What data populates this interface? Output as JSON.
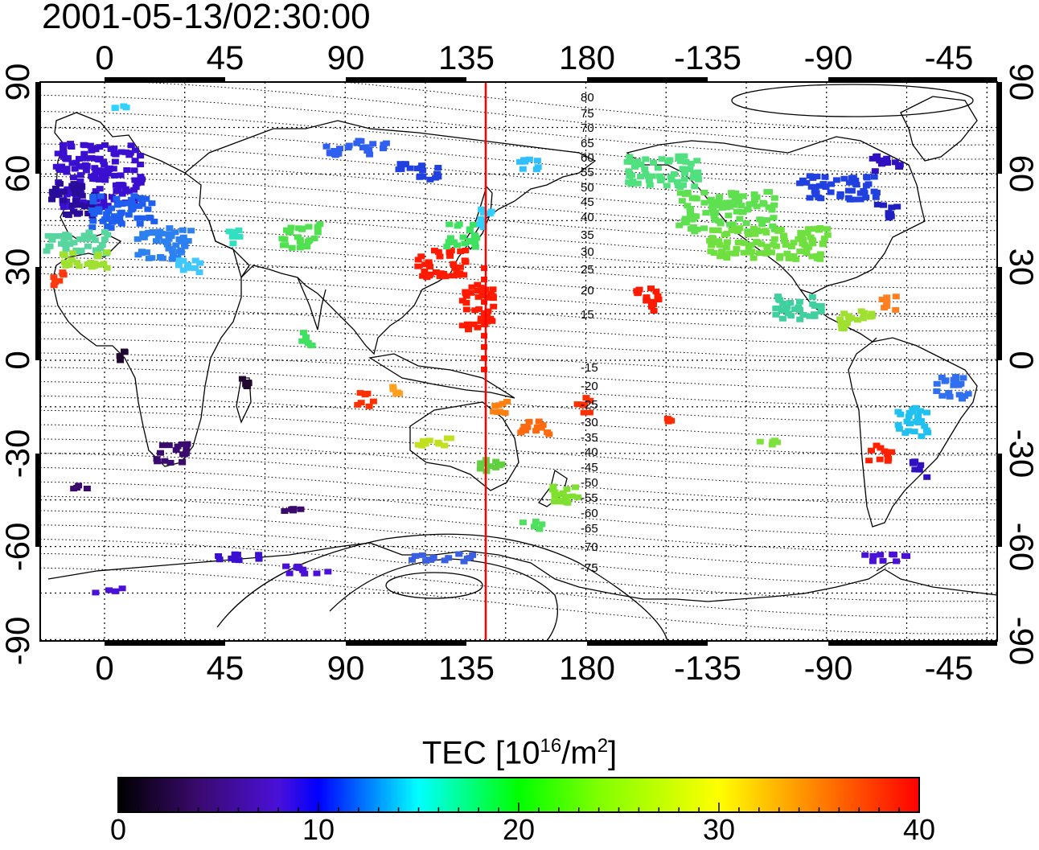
{
  "title": "2001-05-13/02:30:00",
  "map": {
    "top_lon_ticks": [
      "0",
      "45",
      "90",
      "135",
      "180",
      "-135",
      "-90",
      "-45"
    ],
    "bottom_lon_ticks": [
      "0",
      "45",
      "90",
      "135",
      "180",
      "-135",
      "-90",
      "-45"
    ],
    "left_lat_ticks": [
      "90",
      "60",
      "30",
      "0",
      "-30",
      "-60",
      "-90"
    ],
    "right_lat_ticks": [
      "90",
      "60",
      "30",
      "0",
      "-30",
      "-60",
      "-90"
    ],
    "magnetic_lat_labels": [
      "80",
      "75",
      "70",
      "65",
      "60",
      "55",
      "50",
      "45",
      "40",
      "35",
      "30",
      "25",
      "20",
      "15",
      "-15",
      "-20",
      "-25",
      "-30",
      "-35",
      "-40",
      "-45",
      "-50",
      "-55",
      "-60",
      "-65",
      "-70",
      "-75"
    ],
    "meridian_marker_lon": 142,
    "colors": {
      "marker_line": "#ff0000"
    }
  },
  "colorbar": {
    "title_main": "TEC  [10",
    "title_exp1": "16",
    "title_mid": "/m",
    "title_exp2": "2",
    "title_end": "]",
    "ticks": [
      "0",
      "10",
      "20",
      "30",
      "40"
    ],
    "min": 0,
    "max": 40
  }
}
